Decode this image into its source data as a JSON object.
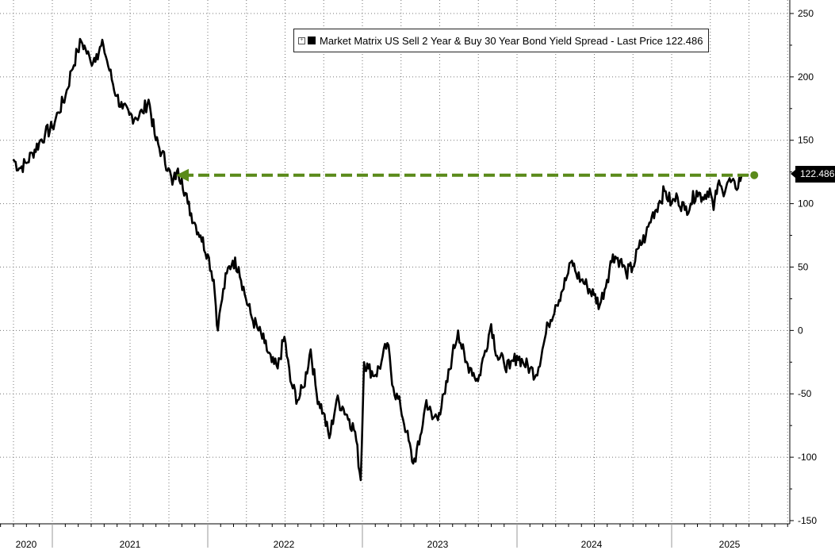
{
  "chart_data": {
    "type": "line",
    "legend_text": "Market Matrix US Sell 2 Year & Buy 30 Year Bond Yield Spread - Last Price 122.486",
    "last_price_label": "122.486",
    "last_value": 122.486,
    "reference_line": {
      "value": 122.486,
      "from_date": "2021-09-15",
      "to_date": "2025-07-15",
      "color": "#5a8a1a",
      "style": "dashed-arrow"
    },
    "ylim": [
      -150,
      250
    ],
    "y_ticks": [
      250,
      200,
      150,
      100,
      50,
      0,
      -50,
      -100,
      -150
    ],
    "y_tick_labels": [
      "250",
      "200",
      "150",
      "100",
      "50",
      "0",
      "-50",
      "-100",
      "-150"
    ],
    "x_labels": [
      "2020",
      "2021",
      "2022",
      "2023",
      "2024",
      "2025"
    ],
    "grid": true,
    "line_color": "#000000",
    "series": [
      {
        "points": [
          [
            "2020-10-01",
            135
          ],
          [
            "2020-10-15",
            128
          ],
          [
            "2020-11-01",
            132
          ],
          [
            "2020-11-15",
            140
          ],
          [
            "2020-12-01",
            148
          ],
          [
            "2020-12-15",
            155
          ],
          [
            "2021-01-01",
            160
          ],
          [
            "2021-01-15",
            172
          ],
          [
            "2021-02-01",
            185
          ],
          [
            "2021-02-15",
            205
          ],
          [
            "2021-03-01",
            220
          ],
          [
            "2021-03-10",
            228
          ],
          [
            "2021-03-20",
            222
          ],
          [
            "2021-04-01",
            212
          ],
          [
            "2021-04-15",
            218
          ],
          [
            "2021-05-01",
            225
          ],
          [
            "2021-05-15",
            205
          ],
          [
            "2021-06-01",
            185
          ],
          [
            "2021-06-15",
            175
          ],
          [
            "2021-07-01",
            170
          ],
          [
            "2021-07-15",
            168
          ],
          [
            "2021-08-01",
            172
          ],
          [
            "2021-08-15",
            182
          ],
          [
            "2021-09-01",
            150
          ],
          [
            "2021-09-15",
            140
          ],
          [
            "2021-10-01",
            128
          ],
          [
            "2021-10-10",
            115
          ],
          [
            "2021-10-20",
            125
          ],
          [
            "2021-11-01",
            120
          ],
          [
            "2021-11-15",
            100
          ],
          [
            "2021-12-01",
            85
          ],
          [
            "2021-12-15",
            75
          ],
          [
            "2022-01-01",
            60
          ],
          [
            "2022-01-15",
            40
          ],
          [
            "2022-01-25",
            0
          ],
          [
            "2022-02-01",
            20
          ],
          [
            "2022-02-15",
            45
          ],
          [
            "2022-03-01",
            55
          ],
          [
            "2022-03-15",
            50
          ],
          [
            "2022-04-01",
            25
          ],
          [
            "2022-04-15",
            10
          ],
          [
            "2022-05-01",
            0
          ],
          [
            "2022-05-15",
            -10
          ],
          [
            "2022-06-01",
            -25
          ],
          [
            "2022-06-15",
            -30
          ],
          [
            "2022-07-01",
            -5
          ],
          [
            "2022-07-15",
            -40
          ],
          [
            "2022-08-01",
            -55
          ],
          [
            "2022-08-15",
            -45
          ],
          [
            "2022-09-01",
            -15
          ],
          [
            "2022-09-15",
            -50
          ],
          [
            "2022-10-01",
            -65
          ],
          [
            "2022-10-15",
            -85
          ],
          [
            "2022-11-01",
            -55
          ],
          [
            "2022-11-15",
            -60
          ],
          [
            "2022-12-01",
            -70
          ],
          [
            "2022-12-15",
            -80
          ],
          [
            "2022-12-28",
            -118
          ],
          [
            "2023-01-05",
            -25
          ],
          [
            "2023-01-15",
            -30
          ],
          [
            "2023-02-01",
            -35
          ],
          [
            "2023-02-15",
            -25
          ],
          [
            "2023-03-01",
            -10
          ],
          [
            "2023-03-15",
            -45
          ],
          [
            "2023-04-01",
            -60
          ],
          [
            "2023-04-15",
            -80
          ],
          [
            "2023-05-01",
            -105
          ],
          [
            "2023-05-15",
            -90
          ],
          [
            "2023-06-01",
            -55
          ],
          [
            "2023-06-15",
            -70
          ],
          [
            "2023-07-01",
            -65
          ],
          [
            "2023-07-15",
            -50
          ],
          [
            "2023-08-01",
            -20
          ],
          [
            "2023-08-15",
            0
          ],
          [
            "2023-09-01",
            -25
          ],
          [
            "2023-09-15",
            -30
          ],
          [
            "2023-10-01",
            -40
          ],
          [
            "2023-10-15",
            -20
          ],
          [
            "2023-11-01",
            5
          ],
          [
            "2023-11-15",
            -20
          ],
          [
            "2023-12-01",
            -25
          ],
          [
            "2023-12-15",
            -30
          ],
          [
            "2024-01-01",
            -20
          ],
          [
            "2024-01-15",
            -25
          ],
          [
            "2024-02-01",
            -30
          ],
          [
            "2024-02-15",
            -35
          ],
          [
            "2024-03-01",
            -15
          ],
          [
            "2024-03-15",
            5
          ],
          [
            "2024-04-01",
            20
          ],
          [
            "2024-04-15",
            30
          ],
          [
            "2024-05-01",
            45
          ],
          [
            "2024-05-10",
            55
          ],
          [
            "2024-05-20",
            45
          ],
          [
            "2024-06-01",
            40
          ],
          [
            "2024-06-15",
            35
          ],
          [
            "2024-07-01",
            28
          ],
          [
            "2024-07-15",
            20
          ],
          [
            "2024-08-01",
            40
          ],
          [
            "2024-08-15",
            60
          ],
          [
            "2024-09-01",
            55
          ],
          [
            "2024-09-15",
            45
          ],
          [
            "2024-10-01",
            50
          ],
          [
            "2024-10-15",
            65
          ],
          [
            "2024-11-01",
            75
          ],
          [
            "2024-11-15",
            90
          ],
          [
            "2024-12-01",
            100
          ],
          [
            "2024-12-15",
            110
          ],
          [
            "2025-01-01",
            100
          ],
          [
            "2025-01-15",
            105
          ],
          [
            "2025-02-01",
            95
          ],
          [
            "2025-02-15",
            100
          ],
          [
            "2025-03-01",
            110
          ],
          [
            "2025-03-15",
            105
          ],
          [
            "2025-04-01",
            112
          ],
          [
            "2025-04-10",
            95
          ],
          [
            "2025-04-20",
            115
          ],
          [
            "2025-05-01",
            110
          ],
          [
            "2025-05-15",
            118
          ],
          [
            "2025-06-01",
            112
          ],
          [
            "2025-06-15",
            122.486
          ]
        ]
      }
    ]
  }
}
